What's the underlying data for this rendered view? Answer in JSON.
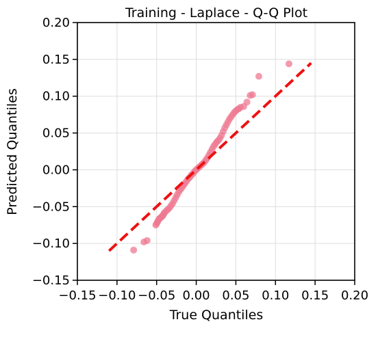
{
  "chart_data": {
    "type": "scatter",
    "title": "Training - Laplace - Q-Q Plot",
    "xlabel": "True Quantiles",
    "ylabel": "Predicted Quantiles",
    "xlim": [
      -0.15,
      0.2
    ],
    "ylim": [
      -0.15,
      0.2
    ],
    "x_ticks": [
      -0.15,
      -0.1,
      -0.05,
      0.0,
      0.05,
      0.1,
      0.15,
      0.2
    ],
    "y_ticks": [
      -0.15,
      -0.1,
      -0.05,
      0.0,
      0.05,
      0.1,
      0.15,
      0.2
    ],
    "x_tick_labels": [
      "−0.15",
      "−0.10",
      "−0.05",
      "0.00",
      "0.05",
      "0.10",
      "0.15",
      "0.20"
    ],
    "y_tick_labels": [
      "−0.15",
      "−0.10",
      "−0.05",
      "0.00",
      "0.05",
      "0.10",
      "0.15",
      "0.20"
    ],
    "grid": true,
    "reference_line": {
      "x": [
        -0.11,
        0.145
      ],
      "y": [
        -0.11,
        0.145
      ],
      "style": "dashed",
      "color": "#ee1111"
    },
    "point_color": "#ee7a92",
    "series": [
      {
        "points": [
          [
            -0.079,
            -0.109
          ],
          [
            -0.066,
            -0.098
          ],
          [
            -0.062,
            -0.096
          ],
          [
            -0.051,
            -0.075
          ],
          [
            -0.05,
            -0.073
          ],
          [
            -0.049,
            -0.071
          ],
          [
            -0.048,
            -0.069
          ],
          [
            -0.047,
            -0.067
          ],
          [
            -0.046,
            -0.066
          ],
          [
            -0.045,
            -0.065
          ],
          [
            -0.044,
            -0.064
          ],
          [
            -0.043,
            -0.063
          ],
          [
            -0.042,
            -0.062
          ],
          [
            -0.041,
            -0.06
          ],
          [
            -0.04,
            -0.058
          ],
          [
            -0.038,
            -0.056
          ],
          [
            -0.036,
            -0.054
          ],
          [
            -0.034,
            -0.052
          ],
          [
            -0.032,
            -0.049
          ],
          [
            -0.03,
            -0.046
          ],
          [
            -0.028,
            -0.042
          ],
          [
            -0.026,
            -0.038
          ],
          [
            -0.024,
            -0.034
          ],
          [
            -0.022,
            -0.03
          ],
          [
            -0.02,
            -0.027
          ],
          [
            -0.018,
            -0.024
          ],
          [
            -0.016,
            -0.021
          ],
          [
            -0.014,
            -0.018
          ],
          [
            -0.012,
            -0.015
          ],
          [
            -0.01,
            -0.012
          ],
          [
            -0.008,
            -0.01
          ],
          [
            -0.006,
            -0.007
          ],
          [
            -0.004,
            -0.005
          ],
          [
            -0.002,
            -0.002
          ],
          [
            0.0,
            0.0
          ],
          [
            0.002,
            0.002
          ],
          [
            0.004,
            0.004
          ],
          [
            0.006,
            0.006
          ],
          [
            0.008,
            0.008
          ],
          [
            0.01,
            0.01
          ],
          [
            0.012,
            0.013
          ],
          [
            0.014,
            0.016
          ],
          [
            0.016,
            0.02
          ],
          [
            0.018,
            0.024
          ],
          [
            0.02,
            0.028
          ],
          [
            0.022,
            0.032
          ],
          [
            0.024,
            0.035
          ],
          [
            0.026,
            0.038
          ],
          [
            0.028,
            0.04
          ],
          [
            0.03,
            0.043
          ],
          [
            0.032,
            0.047
          ],
          [
            0.034,
            0.052
          ],
          [
            0.036,
            0.057
          ],
          [
            0.038,
            0.061
          ],
          [
            0.04,
            0.065
          ],
          [
            0.042,
            0.069
          ],
          [
            0.044,
            0.072
          ],
          [
            0.046,
            0.075
          ],
          [
            0.048,
            0.078
          ],
          [
            0.05,
            0.08
          ],
          [
            0.052,
            0.082
          ],
          [
            0.054,
            0.083
          ],
          [
            0.056,
            0.085
          ],
          [
            0.06,
            0.086
          ],
          [
            0.064,
            0.092
          ],
          [
            0.068,
            0.101
          ],
          [
            0.071,
            0.102
          ],
          [
            0.079,
            0.127
          ],
          [
            0.117,
            0.144
          ]
        ]
      }
    ]
  }
}
